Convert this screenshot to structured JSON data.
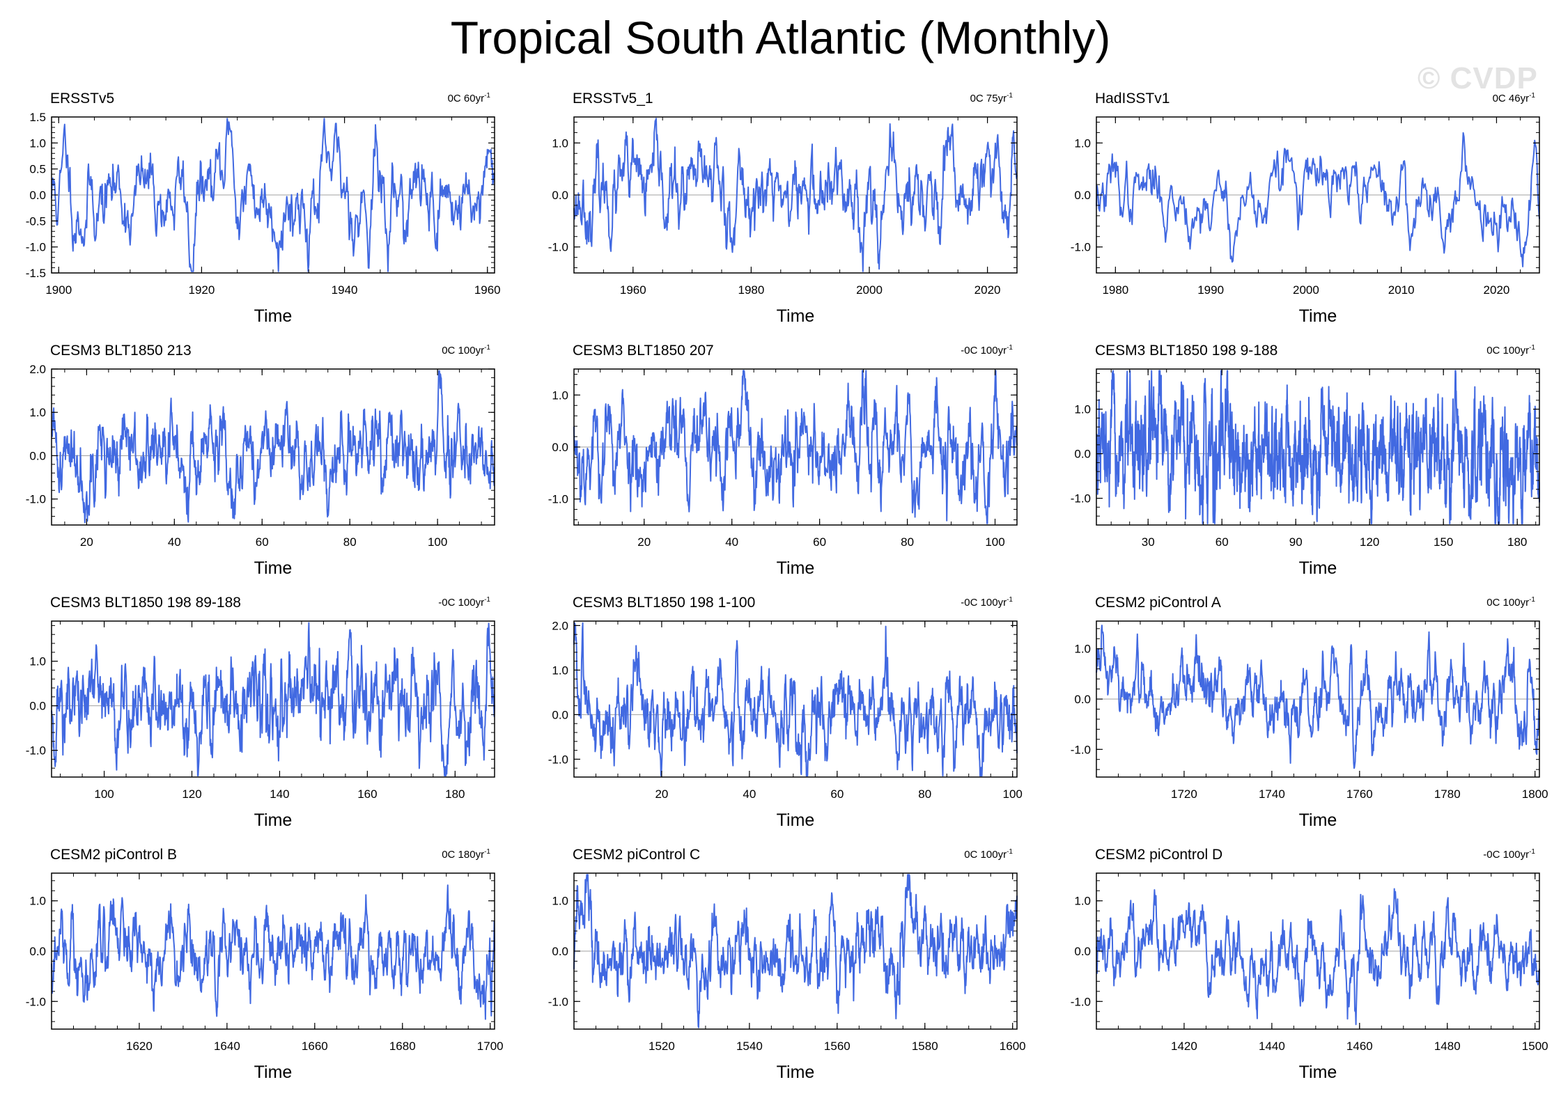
{
  "title": "Tropical South Atlantic (Monthly)",
  "watermark": "© CVDP",
  "colors": {
    "series": "#4169e1",
    "axis": "#000000",
    "zero_line": "#a0a0a0"
  },
  "chart_data": [
    {
      "type": "line",
      "title": "ERSSTv5",
      "trend_label": "0C 60yr",
      "trend_sup": "-1",
      "xlabel": "Time",
      "xlim": [
        1899,
        1961
      ],
      "xticks": [
        1900,
        1920,
        1940,
        1960
      ],
      "ylim": [
        -1.5,
        1.5
      ],
      "yticks": [
        -1.5,
        -1.0,
        -0.5,
        0.0,
        0.5,
        1.0,
        1.5
      ],
      "ytick_labels": [
        "-1.5",
        "-1.0",
        "-0.5",
        "0.0",
        "0.5",
        "1.0",
        "1.5"
      ],
      "seed": 11,
      "phi": 0.9,
      "sigma": 0.33,
      "key_points": [
        [
          1901,
          0.85
        ],
        [
          1918.5,
          -1.4
        ],
        [
          1924,
          1.25
        ],
        [
          1944.3,
          1.35
        ],
        [
          1946,
          -1.0
        ]
      ]
    },
    {
      "type": "line",
      "title": "ERSSTv5_1",
      "trend_label": "0C 75yr",
      "trend_sup": "-1",
      "xlabel": "Time",
      "xlim": [
        1950,
        2025
      ],
      "xticks": [
        1960,
        1980,
        2000,
        2020
      ],
      "ylim": [
        -1.5,
        1.5
      ],
      "yticks": [
        -1.0,
        0.0,
        1.0
      ],
      "ytick_labels": [
        "-1.0",
        "0.0",
        "1.0"
      ],
      "seed": 23,
      "phi": 0.88,
      "sigma": 0.3,
      "key_points": [
        [
          1974,
          1.0
        ],
        [
          1999,
          -1.0
        ],
        [
          2012,
          -0.95
        ],
        [
          2024.5,
          1.0
        ]
      ]
    },
    {
      "type": "line",
      "title": "HadISSTv1",
      "trend_label": "0C 46yr",
      "trend_sup": "-1",
      "xlabel": "Time",
      "xlim": [
        1978,
        2024.5
      ],
      "xticks": [
        1980,
        1990,
        2000,
        2010,
        2020
      ],
      "ylim": [
        -1.5,
        1.5
      ],
      "yticks": [
        -1.0,
        0.0,
        1.0
      ],
      "ytick_labels": [
        "-1.0",
        "0.0",
        "1.0"
      ],
      "seed": 37,
      "phi": 0.9,
      "sigma": 0.28,
      "key_points": [
        [
          1998,
          0.85
        ],
        [
          1992.5,
          -0.9
        ],
        [
          2011,
          -0.85
        ],
        [
          2024,
          1.05
        ]
      ]
    },
    {
      "type": "line",
      "title": "CESM3 BLT1850 213",
      "trend_label": "0C 100yr",
      "trend_sup": "-1",
      "xlabel": "Time",
      "xlim": [
        12,
        113
      ],
      "xticks": [
        20,
        40,
        60,
        80,
        100
      ],
      "ylim": [
        -1.6,
        2.0
      ],
      "yticks": [
        -1.0,
        0.0,
        1.0,
        2.0
      ],
      "ytick_labels": [
        "-1.0",
        "0.0",
        "1.0",
        "2.0"
      ],
      "seed": 41,
      "phi": 0.85,
      "sigma": 0.33,
      "key_points": [
        [
          12.5,
          1.1
        ],
        [
          100.5,
          1.85
        ],
        [
          75,
          -1.25
        ]
      ]
    },
    {
      "type": "line",
      "title": "CESM3 BLT1850 207",
      "trend_label": "-0C 100yr",
      "trend_sup": "-1",
      "xlabel": "Time",
      "xlim": [
        4,
        105
      ],
      "xticks": [
        20,
        40,
        60,
        80,
        100
      ],
      "ylim": [
        -1.5,
        1.5
      ],
      "yticks": [
        -1.0,
        0.0,
        1.0
      ],
      "ytick_labels": [
        "-1.0",
        "0.0",
        "1.0"
      ],
      "seed": 53,
      "phi": 0.85,
      "sigma": 0.33,
      "key_points": [
        [
          43,
          1.1
        ],
        [
          30,
          -1.0
        ],
        [
          92,
          -0.9
        ]
      ]
    },
    {
      "type": "line",
      "title": "CESM3 BLT1850 198 9-188",
      "trend_label": "0C 100yr",
      "trend_sup": "-1",
      "xlabel": "Time",
      "xlim": [
        9,
        189
      ],
      "xticks": [
        30,
        60,
        90,
        120,
        150,
        180
      ],
      "ylim": [
        -1.6,
        1.9
      ],
      "yticks": [
        -1.0,
        0.0,
        1.0
      ],
      "ytick_labels": [
        "-1.0",
        "0.0",
        "1.0"
      ],
      "seed": 67,
      "phi": 0.8,
      "sigma": 0.4,
      "key_points": [
        [
          155,
          1.8
        ],
        [
          182,
          -1.4
        ],
        [
          35,
          1.5
        ]
      ]
    },
    {
      "type": "line",
      "title": "CESM3 BLT1850 198 89-188",
      "trend_label": "-0C 100yr",
      "trend_sup": "-1",
      "xlabel": "Time",
      "xlim": [
        88,
        189
      ],
      "xticks": [
        100,
        120,
        140,
        160,
        180
      ],
      "ylim": [
        -1.6,
        1.9
      ],
      "yticks": [
        -1.0,
        0.0,
        1.0
      ],
      "ytick_labels": [
        "-1.0",
        "0.0",
        "1.0"
      ],
      "seed": 71,
      "phi": 0.82,
      "sigma": 0.36,
      "key_points": [
        [
          156,
          1.7
        ],
        [
          178,
          -1.35
        ],
        [
          187.5,
          1.35
        ]
      ]
    },
    {
      "type": "line",
      "title": "CESM3 BLT1850 198 1-100",
      "trend_label": "-0C 100yr",
      "trend_sup": "-1",
      "xlabel": "Time",
      "xlim": [
        0,
        101
      ],
      "xticks": [
        20,
        40,
        60,
        80,
        100
      ],
      "ylim": [
        -1.4,
        2.1
      ],
      "yticks": [
        -1.0,
        0.0,
        1.0,
        2.0
      ],
      "ytick_labels": [
        "-1.0",
        "0.0",
        "1.0",
        "2.0"
      ],
      "seed": 83,
      "phi": 0.85,
      "sigma": 0.33,
      "key_points": [
        [
          0.3,
          2.0
        ],
        [
          37,
          1.45
        ],
        [
          20,
          -1.15
        ]
      ]
    },
    {
      "type": "line",
      "title": "CESM2 piControl A",
      "trend_label": "0C 100yr",
      "trend_sup": "-1",
      "xlabel": "Time",
      "xlim": [
        1700,
        1801
      ],
      "xticks": [
        1720,
        1740,
        1760,
        1780,
        1800
      ],
      "ylim": [
        -1.55,
        1.55
      ],
      "yticks": [
        -1.0,
        0.0,
        1.0
      ],
      "ytick_labels": [
        "-1.0",
        "0.0",
        "1.0"
      ],
      "seed": 97,
      "phi": 0.9,
      "sigma": 0.28,
      "key_points": [
        [
          1700.5,
          1.0
        ],
        [
          1758,
          1.05
        ],
        [
          1763,
          -1.05
        ],
        [
          1798,
          -0.9
        ]
      ]
    },
    {
      "type": "line",
      "title": "CESM2 piControl B",
      "trend_label": "0C 180yr",
      "trend_sup": "-1",
      "xlabel": "Time",
      "xlim": [
        1600,
        1701
      ],
      "xticks": [
        1620,
        1640,
        1660,
        1680,
        1700
      ],
      "ylim": [
        -1.55,
        1.55
      ],
      "yticks": [
        -1.0,
        0.0,
        1.0
      ],
      "ytick_labels": [
        "-1.0",
        "0.0",
        "1.0"
      ],
      "seed": 103,
      "phi": 0.88,
      "sigma": 0.28,
      "key_points": [
        [
          1616,
          0.95
        ],
        [
          1637.5,
          -1.0
        ],
        [
          1693,
          -0.85
        ]
      ]
    },
    {
      "type": "line",
      "title": "CESM2 piControl C",
      "trend_label": "0C 100yr",
      "trend_sup": "-1",
      "xlabel": "Time",
      "xlim": [
        1500,
        1601
      ],
      "xticks": [
        1520,
        1540,
        1560,
        1580,
        1600
      ],
      "ylim": [
        -1.55,
        1.55
      ],
      "yticks": [
        -1.0,
        0.0,
        1.0
      ],
      "ytick_labels": [
        "-1.0",
        "0.0",
        "1.0"
      ],
      "seed": 113,
      "phi": 0.88,
      "sigma": 0.3,
      "key_points": [
        [
          1503,
          1.4
        ],
        [
          1576,
          1.35
        ],
        [
          1510,
          -0.9
        ],
        [
          1560,
          -0.9
        ]
      ]
    },
    {
      "type": "line",
      "title": "CESM2 piControl D",
      "trend_label": "-0C 100yr",
      "trend_sup": "-1",
      "xlabel": "Time",
      "xlim": [
        1400,
        1501
      ],
      "xticks": [
        1420,
        1440,
        1460,
        1480,
        1500
      ],
      "ylim": [
        -1.55,
        1.55
      ],
      "yticks": [
        -1.0,
        0.0,
        1.0
      ],
      "ytick_labels": [
        "-1.0",
        "0.0",
        "1.0"
      ],
      "seed": 127,
      "phi": 0.9,
      "sigma": 0.26,
      "key_points": [
        [
          1459,
          -1.2
        ],
        [
          1434.5,
          -1.0
        ],
        [
          1480,
          0.95
        ]
      ]
    }
  ]
}
